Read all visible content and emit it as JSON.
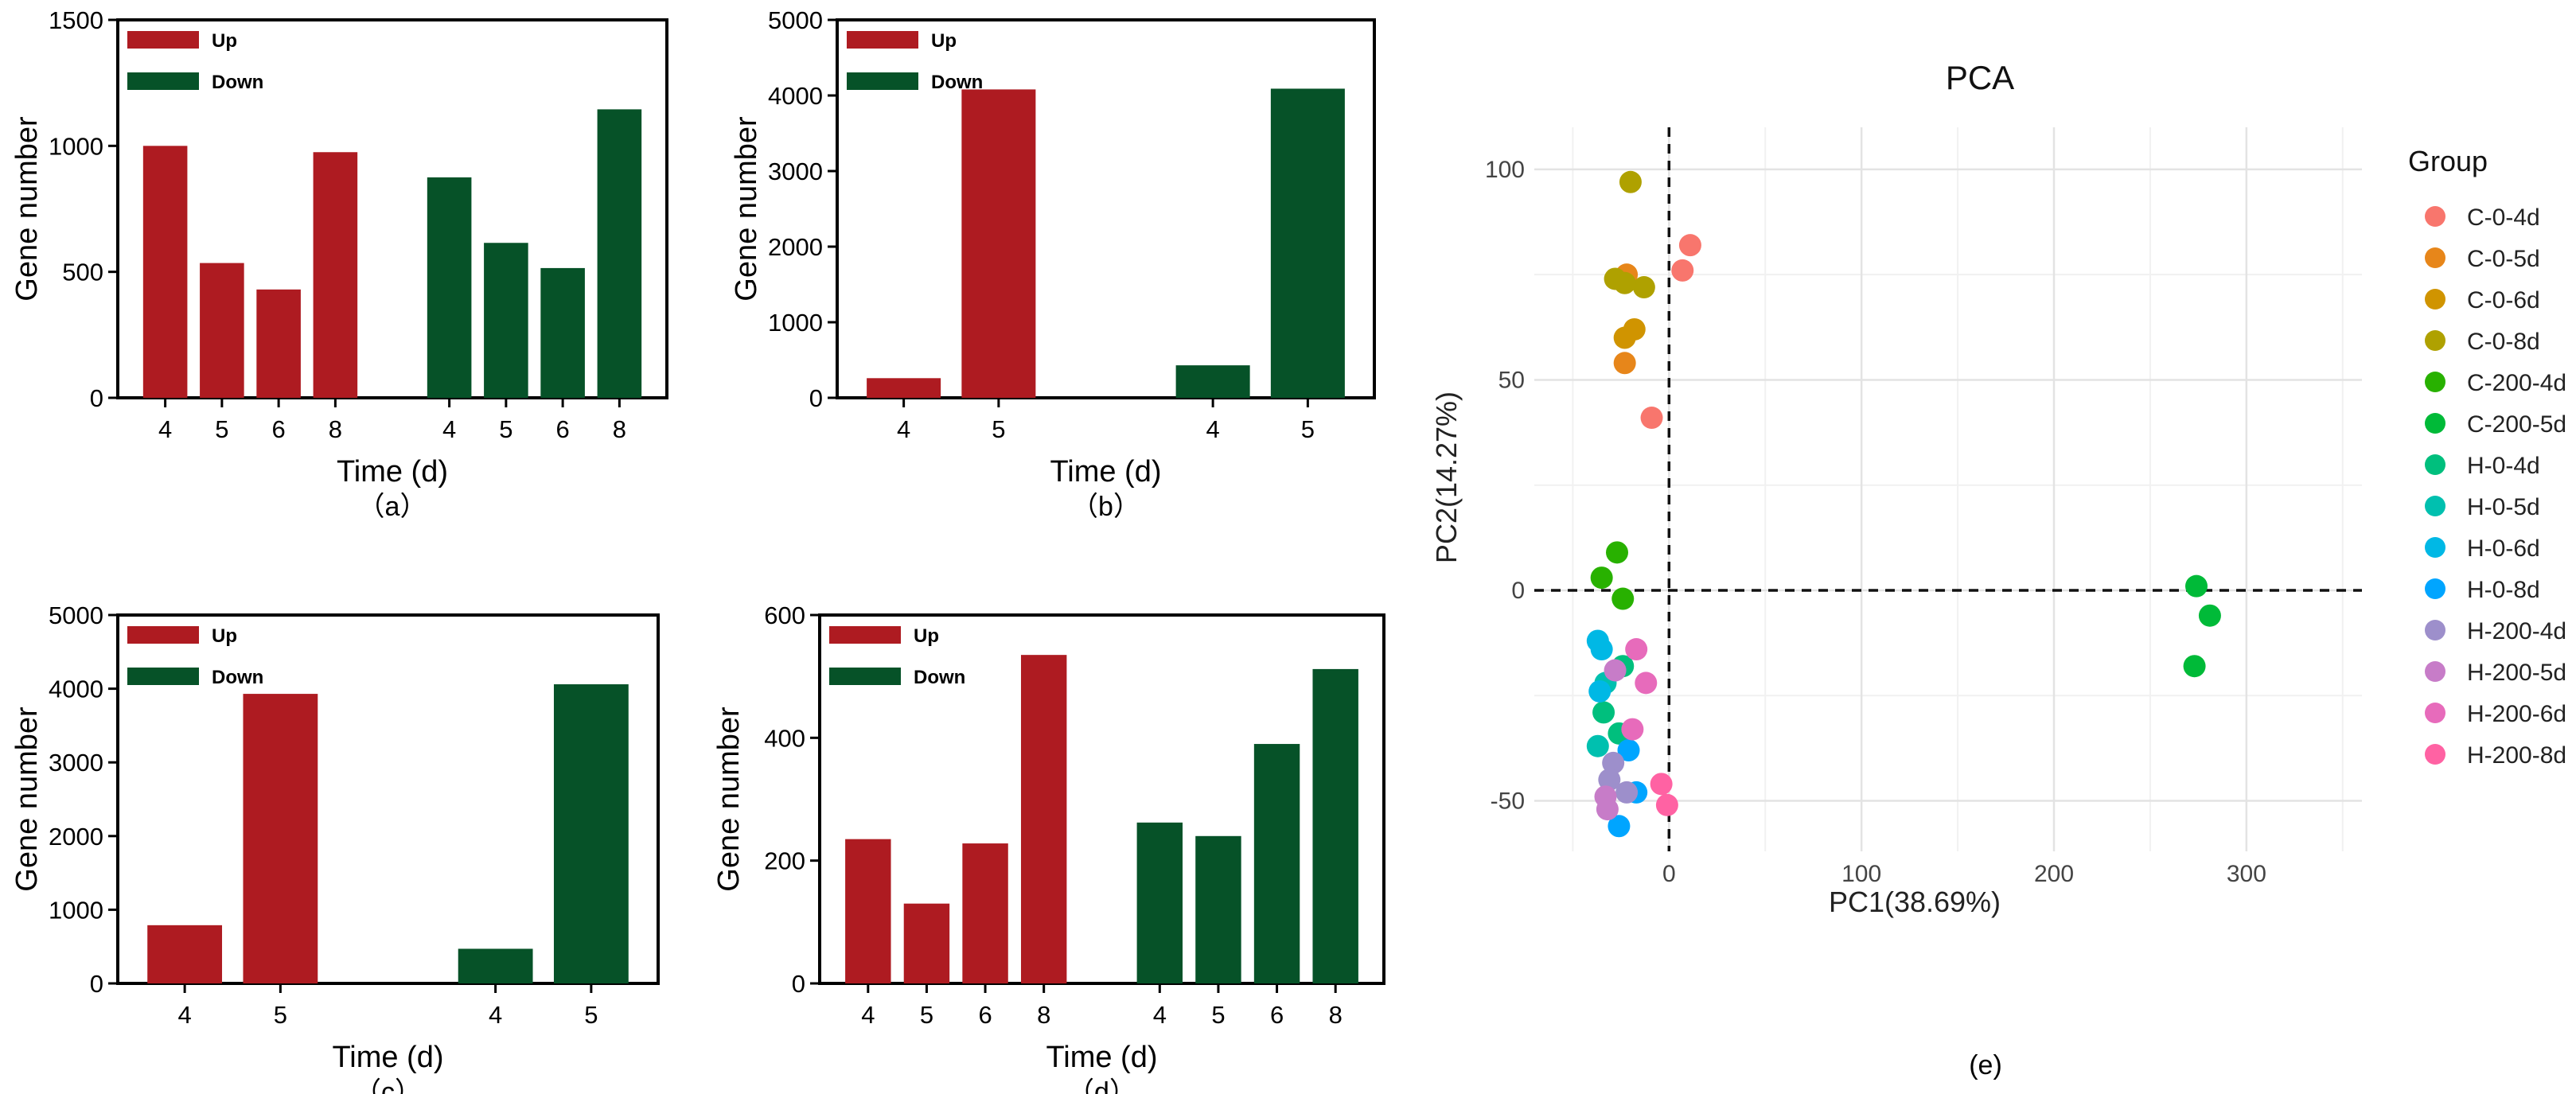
{
  "colors": {
    "up": "#AE1B21",
    "down": "#065228"
  },
  "chart_data": [
    {
      "type": "bar",
      "panel_label": "（a）",
      "xlabel": "Time (d)",
      "ylabel": "Gene number",
      "ylim": [
        0,
        1500
      ],
      "yticks": [
        0,
        500,
        1000,
        1500
      ],
      "legend": [
        "Up",
        "Down"
      ],
      "legend_position": "top-left",
      "series": [
        {
          "name": "Up",
          "categories": [
            "4",
            "5",
            "6",
            "8"
          ],
          "values": [
            1000,
            535,
            430,
            975
          ]
        },
        {
          "name": "Down",
          "categories": [
            "4",
            "5",
            "6",
            "8"
          ],
          "values": [
            875,
            615,
            515,
            1145
          ]
        }
      ]
    },
    {
      "type": "bar",
      "panel_label": "（b）",
      "xlabel": "Time (d)",
      "ylabel": "Gene number",
      "ylim": [
        0,
        5000
      ],
      "yticks": [
        0,
        1000,
        2000,
        3000,
        4000,
        5000
      ],
      "legend": [
        "Up",
        "Down"
      ],
      "legend_position": "top-left",
      "series": [
        {
          "name": "Up",
          "categories": [
            "4",
            "5"
          ],
          "values": [
            260,
            4080
          ]
        },
        {
          "name": "Down",
          "categories": [
            "4",
            "5"
          ],
          "values": [
            430,
            4090
          ]
        }
      ]
    },
    {
      "type": "bar",
      "panel_label": "（c）",
      "xlabel": "Time (d)",
      "ylabel": "Gene number",
      "ylim": [
        0,
        5000
      ],
      "yticks": [
        0,
        1000,
        2000,
        3000,
        4000,
        5000
      ],
      "legend": [
        "Up",
        "Down"
      ],
      "legend_position": "top-left",
      "series": [
        {
          "name": "Up",
          "categories": [
            "4",
            "5"
          ],
          "values": [
            790,
            3930
          ]
        },
        {
          "name": "Down",
          "categories": [
            "4",
            "5"
          ],
          "values": [
            470,
            4060
          ]
        }
      ]
    },
    {
      "type": "bar",
      "panel_label": "（d）",
      "xlabel": "Time (d)",
      "ylabel": "Gene number",
      "ylim": [
        0,
        600
      ],
      "yticks": [
        0,
        200,
        400,
        600
      ],
      "legend": [
        "Up",
        "Down"
      ],
      "legend_position": "top-left",
      "series": [
        {
          "name": "Up",
          "categories": [
            "4",
            "5",
            "6",
            "8"
          ],
          "values": [
            235,
            130,
            228,
            535
          ]
        },
        {
          "name": "Down",
          "categories": [
            "4",
            "5",
            "6",
            "8"
          ],
          "values": [
            262,
            240,
            390,
            512
          ]
        }
      ]
    },
    {
      "type": "scatter",
      "panel_label": "(e)",
      "title": "PCA",
      "xlabel": "PC1(38.69%)",
      "ylabel": "PC2(14.27%)",
      "xlim": [
        -70,
        360
      ],
      "ylim": [
        -62,
        110
      ],
      "xticks": [
        0,
        100,
        200,
        300
      ],
      "yticks": [
        -50,
        0,
        50,
        100
      ],
      "grid": true,
      "reference_lines": {
        "x": 0,
        "y": 0,
        "style": "dashed"
      },
      "legend_title": "Group",
      "legend_position": "right",
      "groups": [
        {
          "name": "C-0-4d",
          "color": "#F8766D",
          "points": [
            [
              11,
              82
            ],
            [
              7,
              76
            ],
            [
              -9,
              41
            ]
          ]
        },
        {
          "name": "C-0-5d",
          "color": "#E7861A",
          "points": [
            [
              -22,
              75
            ],
            [
              -23,
              54
            ]
          ]
        },
        {
          "name": "C-0-6d",
          "color": "#D09400",
          "points": [
            [
              -18,
              62
            ],
            [
              -23,
              60
            ]
          ]
        },
        {
          "name": "C-0-8d",
          "color": "#AFA100",
          "points": [
            [
              -20,
              97
            ],
            [
              -28,
              74
            ],
            [
              -13,
              72
            ],
            [
              -23,
              73
            ]
          ]
        },
        {
          "name": "C-200-4d",
          "color": "#28B100",
          "points": [
            [
              -27,
              9
            ],
            [
              -35,
              3
            ],
            [
              -24,
              -2
            ]
          ]
        },
        {
          "name": "C-200-5d",
          "color": "#00BA38",
          "points": [
            [
              274,
              1
            ],
            [
              281,
              -6
            ],
            [
              273,
              -18
            ]
          ]
        },
        {
          "name": "H-0-4d",
          "color": "#00BF7D",
          "points": [
            [
              -24,
              -18
            ],
            [
              -26,
              -34
            ],
            [
              -34,
              -29
            ]
          ]
        },
        {
          "name": "H-0-5d",
          "color": "#00C0AF",
          "points": [
            [
              -37,
              -37
            ],
            [
              -33,
              -22
            ]
          ]
        },
        {
          "name": "H-0-6d",
          "color": "#00B8E5",
          "points": [
            [
              -37,
              -12
            ],
            [
              -35,
              -14
            ],
            [
              -36,
              -24
            ]
          ]
        },
        {
          "name": "H-0-8d",
          "color": "#00A5FF",
          "points": [
            [
              -21,
              -38
            ],
            [
              -17,
              -48
            ],
            [
              -26,
              -56
            ]
          ]
        },
        {
          "name": "H-200-4d",
          "color": "#9D8FCB",
          "points": [
            [
              -29,
              -41
            ],
            [
              -31,
              -45
            ],
            [
              -22,
              -48
            ]
          ]
        },
        {
          "name": "H-200-5d",
          "color": "#C77CC8",
          "points": [
            [
              -28,
              -19
            ],
            [
              -32,
              -52
            ],
            [
              -33,
              -49
            ]
          ]
        },
        {
          "name": "H-200-6d",
          "color": "#E76BBB",
          "points": [
            [
              -17,
              -14
            ],
            [
              -12,
              -22
            ],
            [
              -19,
              -33
            ]
          ]
        },
        {
          "name": "H-200-8d",
          "color": "#FF62A3",
          "points": [
            [
              -4,
              -46
            ],
            [
              -1,
              -51
            ]
          ]
        }
      ]
    }
  ]
}
